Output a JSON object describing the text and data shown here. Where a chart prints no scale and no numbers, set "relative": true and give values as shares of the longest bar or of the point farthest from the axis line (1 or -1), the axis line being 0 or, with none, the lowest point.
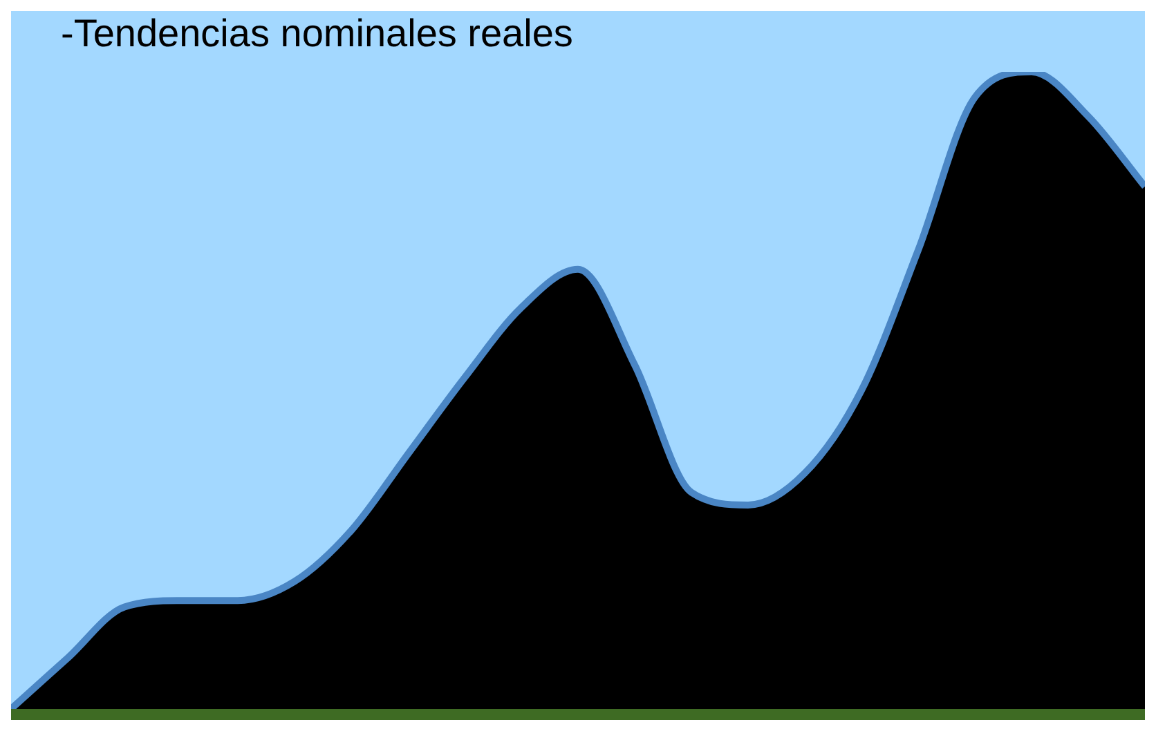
{
  "chart_data": {
    "type": "area",
    "title": "-Tendencias nominales reales",
    "relative": true,
    "categories": [
      null,
      null,
      null,
      null,
      null,
      null,
      null,
      null,
      null,
      null,
      null,
      null,
      null,
      null,
      null,
      null,
      null,
      null,
      null,
      null,
      null
    ],
    "series": [
      {
        "color": "#000000",
        "values": [
          0,
          0.08,
          0.16,
          0.17,
          0.17,
          0.2,
          0.28,
          0.4,
          0.52,
          0.63,
          0.69,
          0.54,
          0.34,
          0.32,
          0.37,
          0.5,
          0.72,
          0.96,
          1,
          0.93,
          0.82
        ]
      }
    ]
  }
}
